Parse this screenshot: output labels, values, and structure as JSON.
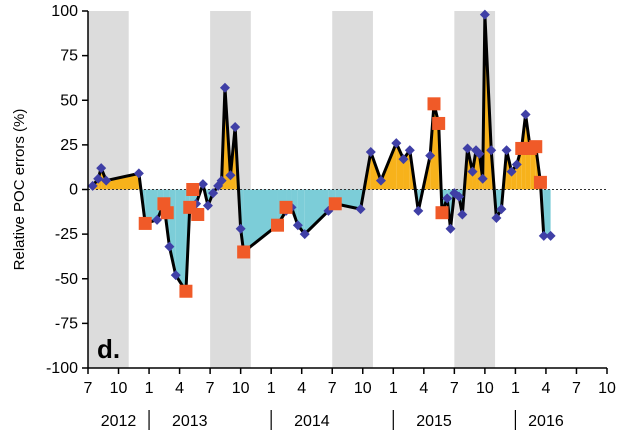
{
  "chart_data": {
    "type": "line",
    "panel_label": "d.",
    "ylabel": "Relative POC  errors (%)",
    "xlabel": "",
    "ylim": [
      -100,
      100
    ],
    "y_ticks": [
      100,
      75,
      50,
      25,
      0,
      -25,
      -50,
      -75,
      -100
    ],
    "x_range_months": [
      "2012-07",
      "2016-10"
    ],
    "x_ticks": [
      {
        "date": "2012-07",
        "label": "7"
      },
      {
        "date": "2012-10",
        "label": "10"
      },
      {
        "date": "2013-01",
        "label": "1"
      },
      {
        "date": "2013-04",
        "label": "4"
      },
      {
        "date": "2013-07",
        "label": "7"
      },
      {
        "date": "2013-10",
        "label": "10"
      },
      {
        "date": "2014-01",
        "label": "1"
      },
      {
        "date": "2014-04",
        "label": "4"
      },
      {
        "date": "2014-07",
        "label": "7"
      },
      {
        "date": "2014-10",
        "label": "10"
      },
      {
        "date": "2015-01",
        "label": "1"
      },
      {
        "date": "2015-04",
        "label": "4"
      },
      {
        "date": "2015-07",
        "label": "7"
      },
      {
        "date": "2015-10",
        "label": "10"
      },
      {
        "date": "2016-01",
        "label": "1"
      },
      {
        "date": "2016-04",
        "label": "4"
      },
      {
        "date": "2016-07",
        "label": "7"
      },
      {
        "date": "2016-10",
        "label": "10"
      }
    ],
    "years": [
      {
        "label": "2012",
        "center": "2012-10"
      },
      {
        "label": "2013",
        "center": "2013-05"
      },
      {
        "label": "2014",
        "center": "2014-05"
      },
      {
        "label": "2015",
        "center": "2015-05"
      },
      {
        "label": "2016",
        "center": "2016-04"
      }
    ],
    "year_separators": [
      "2013-01",
      "2014-01",
      "2015-01",
      "2016-01"
    ],
    "shaded_periods": [
      [
        "2012-07",
        "2012-11"
      ],
      [
        "2013-07",
        "2013-11"
      ],
      [
        "2014-07",
        "2014-11"
      ],
      [
        "2015-07",
        "2015-11"
      ]
    ],
    "zero_line": "dotted",
    "grid": false,
    "colors": {
      "positive_fill": "#F7B21B",
      "negative_fill": "#7CCDD8",
      "line": "#000000",
      "diamond": "#3F3FA6",
      "square": "#F05A28",
      "shade": "#DCDCDC"
    },
    "series": [
      {
        "marker": "diamond",
        "points": [
          {
            "x": "2012-07-15",
            "y": 2
          },
          {
            "x": "2012-08-01",
            "y": 6
          },
          {
            "x": "2012-08-10",
            "y": 12
          },
          {
            "x": "2012-08-25",
            "y": 5
          },
          {
            "x": "2012-12-01",
            "y": 9
          },
          {
            "x": "2012-12-20",
            "y": -19
          },
          {
            "x": "2013-01-25",
            "y": -17
          },
          {
            "x": "2013-02-15",
            "y": -8
          },
          {
            "x": "2013-03-01",
            "y": -32
          },
          {
            "x": "2013-03-20",
            "y": -48
          },
          {
            "x": "2013-04-20",
            "y": -57
          },
          {
            "x": "2013-05-01",
            "y": -10
          },
          {
            "x": "2013-05-20",
            "y": -8
          },
          {
            "x": "2013-06-10",
            "y": 3
          },
          {
            "x": "2013-06-25",
            "y": -9
          },
          {
            "x": "2013-07-10",
            "y": -2
          },
          {
            "x": "2013-07-25",
            "y": 2
          },
          {
            "x": "2013-08-05",
            "y": 5
          },
          {
            "x": "2013-08-15",
            "y": 57
          },
          {
            "x": "2013-09-01",
            "y": 8
          },
          {
            "x": "2013-09-15",
            "y": 35
          },
          {
            "x": "2013-10-01",
            "y": -22
          },
          {
            "x": "2013-10-10",
            "y": -35
          },
          {
            "x": "2014-01-20",
            "y": -20
          },
          {
            "x": "2014-02-15",
            "y": -12
          },
          {
            "x": "2014-03-01",
            "y": -10
          },
          {
            "x": "2014-03-20",
            "y": -20
          },
          {
            "x": "2014-04-10",
            "y": -25
          },
          {
            "x": "2014-06-20",
            "y": -12
          },
          {
            "x": "2014-07-10",
            "y": -8
          },
          {
            "x": "2014-09-25",
            "y": -11
          },
          {
            "x": "2014-10-25",
            "y": 21
          },
          {
            "x": "2014-11-25",
            "y": 5
          },
          {
            "x": "2015-01-10",
            "y": 26
          },
          {
            "x": "2015-02-01",
            "y": 17
          },
          {
            "x": "2015-02-20",
            "y": 22
          },
          {
            "x": "2015-03-15",
            "y": -12
          },
          {
            "x": "2015-04-20",
            "y": 19
          },
          {
            "x": "2015-05-01",
            "y": 48
          },
          {
            "x": "2015-05-15",
            "y": 37
          },
          {
            "x": "2015-05-25",
            "y": -13
          },
          {
            "x": "2015-06-10",
            "y": -5
          },
          {
            "x": "2015-06-20",
            "y": -22
          },
          {
            "x": "2015-07-01",
            "y": -2
          },
          {
            "x": "2015-07-15",
            "y": -4
          },
          {
            "x": "2015-07-25",
            "y": -14
          },
          {
            "x": "2015-08-10",
            "y": 23
          },
          {
            "x": "2015-08-25",
            "y": 10
          },
          {
            "x": "2015-09-05",
            "y": 22
          },
          {
            "x": "2015-09-15",
            "y": 20
          },
          {
            "x": "2015-09-25",
            "y": 6
          },
          {
            "x": "2015-10-01",
            "y": 98
          },
          {
            "x": "2015-10-20",
            "y": 22
          },
          {
            "x": "2015-11-05",
            "y": -16
          },
          {
            "x": "2015-11-20",
            "y": -11
          },
          {
            "x": "2015-12-05",
            "y": 22
          },
          {
            "x": "2015-12-20",
            "y": 10
          },
          {
            "x": "2016-01-05",
            "y": 14
          },
          {
            "x": "2016-01-20",
            "y": 24
          },
          {
            "x": "2016-02-01",
            "y": 42
          },
          {
            "x": "2016-02-15",
            "y": 23
          },
          {
            "x": "2016-03-01",
            "y": 24
          },
          {
            "x": "2016-03-15",
            "y": 4
          },
          {
            "x": "2016-03-25",
            "y": -26
          },
          {
            "x": "2016-04-15",
            "y": -26
          }
        ]
      },
      {
        "marker": "square",
        "points": [
          {
            "x": "2012-12-20",
            "y": -19
          },
          {
            "x": "2013-02-15",
            "y": -8
          },
          {
            "x": "2013-02-25",
            "y": -13
          },
          {
            "x": "2013-04-20",
            "y": -57
          },
          {
            "x": "2013-05-01",
            "y": -10
          },
          {
            "x": "2013-05-10",
            "y": 0
          },
          {
            "x": "2013-05-25",
            "y": -14
          },
          {
            "x": "2013-10-10",
            "y": -35
          },
          {
            "x": "2014-01-20",
            "y": -20
          },
          {
            "x": "2014-02-15",
            "y": -10
          },
          {
            "x": "2014-07-10",
            "y": -8
          },
          {
            "x": "2015-05-01",
            "y": 48
          },
          {
            "x": "2015-05-15",
            "y": 37
          },
          {
            "x": "2015-05-25",
            "y": -13
          },
          {
            "x": "2016-01-20",
            "y": 23
          },
          {
            "x": "2016-02-15",
            "y": 23
          },
          {
            "x": "2016-03-01",
            "y": 24
          },
          {
            "x": "2016-03-15",
            "y": 4
          }
        ]
      }
    ]
  }
}
